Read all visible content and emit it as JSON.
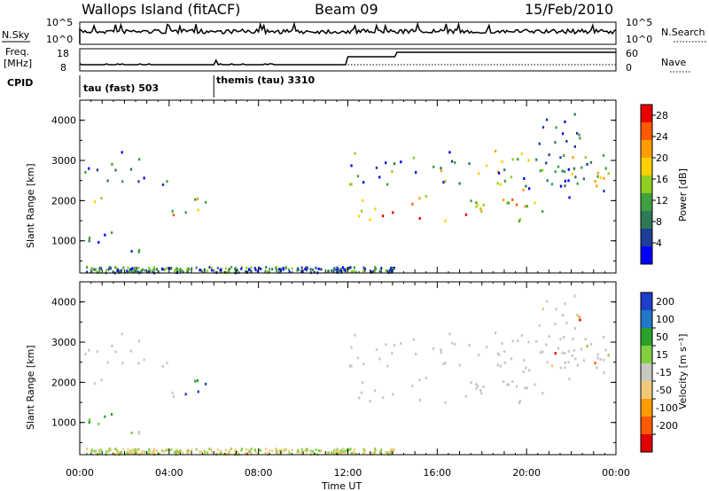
{
  "header": {
    "station": "Wallops Island (fitACF)",
    "beam": "Beam 09",
    "date": "15/Feb/2010"
  },
  "panels": {
    "nsky_label": "N.Sky",
    "nsky_ticks": [
      "10^5",
      "10^0"
    ],
    "nsearch_label": "N.Search",
    "nsearch_ticks": [
      "10^5",
      "10^0"
    ],
    "freq_label_line1": "Freq.",
    "freq_label_line2": "[MHz]",
    "freq_ticks": [
      "18",
      "8"
    ],
    "nave_label": "Nave",
    "nave_ticks": [
      "60",
      "0"
    ],
    "cpid_label": "CPID",
    "cpid_segments": [
      {
        "label": "tau (fast) 503",
        "start_h": 0
      },
      {
        "label": "themis (tau) 3310",
        "start_h": 6
      }
    ]
  },
  "colors": {
    "power": [
      "#0000ff",
      "#1e3f99",
      "#2d7a55",
      "#3fa03f",
      "#8fce20",
      "#ffd000",
      "#ff9d00",
      "#ff5a00",
      "#e80000"
    ],
    "velocity": [
      "#1e40c8",
      "#1f78c8",
      "#2aa02a",
      "#80d040",
      "#c8c8c0",
      "#f0c878",
      "#ff9a00",
      "#ff5a00",
      "#e00000"
    ],
    "gray": "#c8c8c0"
  },
  "chart_data": [
    {
      "type": "heatmap",
      "name": "power",
      "ylabel": "Slant Range [km]",
      "ylim": [
        200,
        4500
      ],
      "xlim": [
        0,
        24
      ],
      "yticks": [
        1000,
        2000,
        3000,
        4000
      ],
      "colorbar_label": "Power [dB]",
      "colorbar_ticks": [
        4,
        8,
        12,
        16,
        20,
        24,
        28
      ],
      "colorbar_range": [
        0,
        30
      ]
    },
    {
      "type": "heatmap",
      "name": "velocity",
      "ylabel": "Slant Range [km]",
      "ylim": [
        200,
        4500
      ],
      "xlim": [
        0,
        24
      ],
      "yticks": [
        1000,
        2000,
        3000,
        4000
      ],
      "colorbar_label": "Velocity [m s⁻¹]",
      "colorbar_ticks": [
        "200",
        "100",
        "50",
        "15",
        "-15",
        "-50",
        "-100",
        "-200"
      ]
    }
  ],
  "xaxis": {
    "label": "Time UT",
    "ticks": [
      "00:00",
      "04:00",
      "08:00",
      "12:00",
      "16:00",
      "20:00",
      "00:00"
    ],
    "tick_hours": [
      0,
      4,
      8,
      12,
      16,
      20,
      24
    ]
  }
}
